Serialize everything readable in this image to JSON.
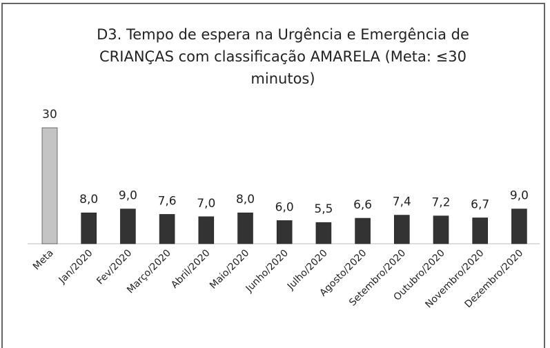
{
  "chart_data": {
    "type": "bar",
    "title": "D3. Tempo de espera na Urgência e Emergência de CRIANÇAS com classificação AMARELA (Meta: ≤30 minutos)",
    "categories": [
      "Meta",
      "Jan/2020",
      "Fev/2020",
      "Março/2020",
      "Abril/2020",
      "Maio/2020",
      "Junho/2020",
      "Julho/2020",
      "Agosto/2020",
      "Setembro/2020",
      "Outubro/2020",
      "Novembro/2020",
      "Dezembro/2020"
    ],
    "values": [
      30,
      8.0,
      9.0,
      7.6,
      7.0,
      8.0,
      6.0,
      5.5,
      6.6,
      7.4,
      7.2,
      6.7,
      9.0
    ],
    "value_labels": [
      "30",
      "8,0",
      "9,0",
      "7,6",
      "7,0",
      "8,0",
      "6,0",
      "5,5",
      "6,6",
      "7,4",
      "7,2",
      "6,7",
      "9,0"
    ],
    "colors": [
      "#c4c4c4",
      "#333333",
      "#333333",
      "#333333",
      "#333333",
      "#333333",
      "#333333",
      "#333333",
      "#333333",
      "#333333",
      "#333333",
      "#333333",
      "#333333"
    ]
  }
}
